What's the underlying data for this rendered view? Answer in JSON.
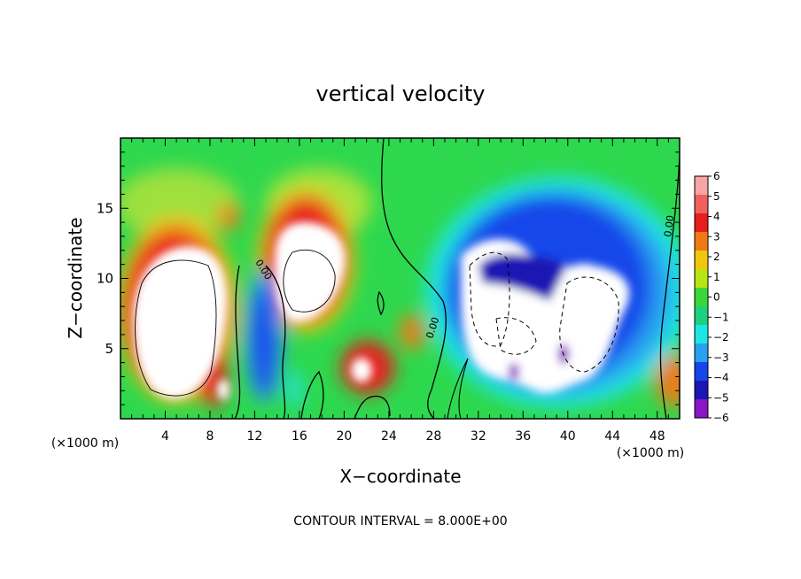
{
  "chart_data": {
    "type": "heatmap",
    "title": "vertical velocity",
    "xlabel": "X−coordinate",
    "ylabel": "Z−coordinate",
    "x_unit_left": "(×1000 m)",
    "x_unit_right": "(×1000 m)",
    "footer": "CONTOUR INTERVAL = 8.000E+00",
    "xlim": [
      0,
      50
    ],
    "ylim": [
      0,
      20
    ],
    "x_ticks": [
      4,
      8,
      12,
      16,
      20,
      24,
      28,
      32,
      36,
      40,
      44,
      48
    ],
    "x_tick_labels": [
      "4",
      "8",
      "12",
      "16",
      "20",
      "24",
      "28",
      "32",
      "36",
      "40",
      "44",
      "48"
    ],
    "y_ticks": [
      5,
      10,
      15
    ],
    "y_tick_labels": [
      "5",
      "10",
      "15"
    ],
    "colorbar": {
      "levels": [
        6,
        5,
        4,
        3,
        2,
        1,
        0,
        -1,
        -2,
        -3,
        -4,
        -5,
        -6
      ],
      "labels": [
        "6",
        "5",
        "4",
        "3",
        "2",
        "1",
        "0",
        "−1",
        "−2",
        "−3",
        "−4",
        "−5",
        "−6"
      ],
      "colors": [
        "#f7a5a5",
        "#f06060",
        "#e81d1d",
        "#f07a12",
        "#f2c60c",
        "#b8e612",
        "#3ad63a",
        "#1cd27e",
        "#1ee6e6",
        "#2aa0f0",
        "#1446ea",
        "#1c16b4",
        "#8a14c6"
      ]
    },
    "contour_labels": [
      "0.00",
      "0.00",
      "0.00"
    ],
    "grid": false,
    "legend": "right"
  }
}
